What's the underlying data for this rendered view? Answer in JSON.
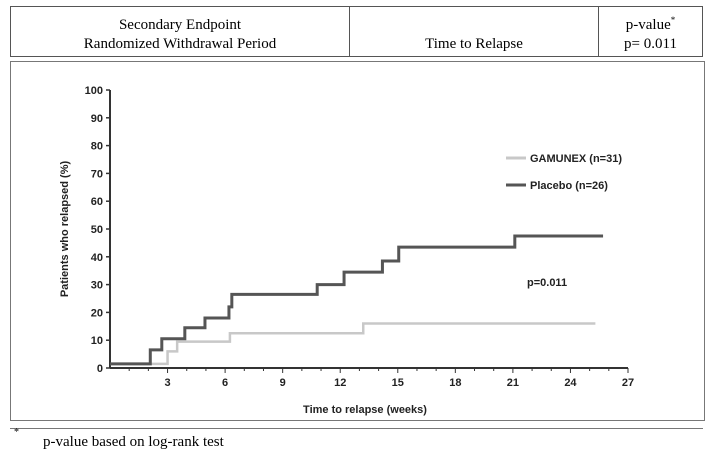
{
  "header": {
    "col1_line1": "Secondary Endpoint",
    "col1_line2": "Randomized Withdrawal Period",
    "col2": "Time to Relapse",
    "col3_line1": "p-value",
    "col3_marker": "*",
    "col3_line2": "p= 0.011"
  },
  "chart_data": {
    "type": "line",
    "step": true,
    "xlabel": "Time to relapse (weeks)",
    "ylabel": "Patients who relapsed (%)",
    "xlim": [
      0,
      27
    ],
    "ylim": [
      0,
      100
    ],
    "xticks": [
      "3",
      "6",
      "9",
      "12",
      "15",
      "18",
      "21",
      "24",
      "27"
    ],
    "yticks": [
      "0",
      "10",
      "20",
      "30",
      "40",
      "50",
      "60",
      "70",
      "80",
      "90",
      "100"
    ],
    "annotation": "p=0.011",
    "legend_position": "right",
    "series": [
      {
        "name": "GAMUNEX (n=31)",
        "color": "#c8c8c8",
        "x": [
          0,
          3.0,
          3.5,
          6.25,
          13.2,
          25.3
        ],
        "y": [
          1.5,
          6,
          9.5,
          12.5,
          16,
          16
        ]
      },
      {
        "name": "Placebo (n=26)",
        "color": "#555555",
        "x": [
          0,
          2.1,
          2.7,
          3.9,
          4.95,
          6.2,
          6.35,
          10.8,
          12.2,
          14.2,
          15.05,
          21.1,
          25.7
        ],
        "y": [
          1.5,
          6.5,
          10.5,
          14.5,
          18,
          22,
          26.5,
          30,
          34.5,
          38.5,
          43.5,
          47.5,
          47.5
        ]
      }
    ]
  },
  "footnote": {
    "marker": "*",
    "text": "p-value based on log-rank test"
  }
}
